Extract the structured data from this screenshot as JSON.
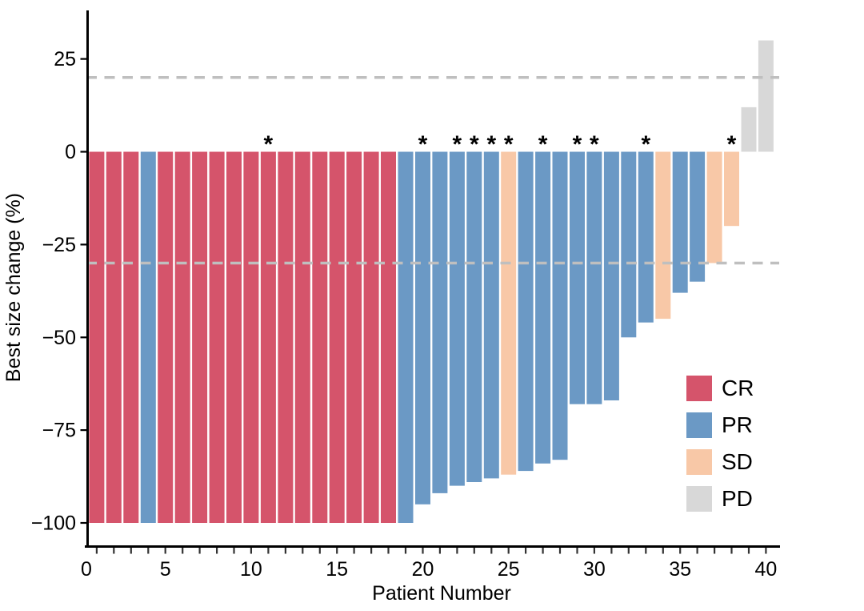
{
  "chart_data": {
    "type": "bar",
    "variant": "waterfall",
    "title": "",
    "xlabel": "Patient Number",
    "ylabel": "Best size change (%)",
    "xlim": [
      0,
      41
    ],
    "ylim": [
      -105,
      33
    ],
    "grid": false,
    "x_tick_labels": [
      {
        "value": 0,
        "label": "0"
      },
      {
        "value": 5,
        "label": "5"
      },
      {
        "value": 10,
        "label": "10"
      },
      {
        "value": 15,
        "label": "15"
      },
      {
        "value": 20,
        "label": "20"
      },
      {
        "value": 25,
        "label": "25"
      },
      {
        "value": 30,
        "label": "30"
      },
      {
        "value": 35,
        "label": "35"
      },
      {
        "value": 40,
        "label": "40"
      }
    ],
    "x_minor_ticks": {
      "from": 1,
      "to": 40,
      "step": 1
    },
    "y_ticks": [
      {
        "value": 25,
        "label": "25"
      },
      {
        "value": 0,
        "label": "0"
      },
      {
        "value": -25,
        "label": "−25"
      },
      {
        "value": -50,
        "label": "−50"
      },
      {
        "value": -75,
        "label": "−75"
      },
      {
        "value": -100,
        "label": "−100"
      }
    ],
    "reference_lines": {
      "values": [
        20,
        -30
      ],
      "style": "dashed",
      "color": "#bfbfbf"
    },
    "star_symbol": "*",
    "legend": {
      "position": "inside-right",
      "entries": [
        {
          "label": "CR",
          "color": "#d5546b"
        },
        {
          "label": "PR",
          "color": "#6b99c5"
        },
        {
          "label": "SD",
          "color": "#f8c8a7"
        },
        {
          "label": "PD",
          "color": "#d8d8d8"
        }
      ]
    },
    "patients": [
      {
        "n": 1,
        "best_size_change_pct": -100,
        "response": "CR",
        "starred": false
      },
      {
        "n": 2,
        "best_size_change_pct": -100,
        "response": "CR",
        "starred": false
      },
      {
        "n": 3,
        "best_size_change_pct": -100,
        "response": "CR",
        "starred": false
      },
      {
        "n": 4,
        "best_size_change_pct": -100,
        "response": "PR",
        "starred": false
      },
      {
        "n": 5,
        "best_size_change_pct": -100,
        "response": "CR",
        "starred": false
      },
      {
        "n": 6,
        "best_size_change_pct": -100,
        "response": "CR",
        "starred": false
      },
      {
        "n": 7,
        "best_size_change_pct": -100,
        "response": "CR",
        "starred": false
      },
      {
        "n": 8,
        "best_size_change_pct": -100,
        "response": "CR",
        "starred": false
      },
      {
        "n": 9,
        "best_size_change_pct": -100,
        "response": "CR",
        "starred": false
      },
      {
        "n": 10,
        "best_size_change_pct": -100,
        "response": "CR",
        "starred": false
      },
      {
        "n": 11,
        "best_size_change_pct": -100,
        "response": "CR",
        "starred": true
      },
      {
        "n": 12,
        "best_size_change_pct": -100,
        "response": "CR",
        "starred": false
      },
      {
        "n": 13,
        "best_size_change_pct": -100,
        "response": "CR",
        "starred": false
      },
      {
        "n": 14,
        "best_size_change_pct": -100,
        "response": "CR",
        "starred": false
      },
      {
        "n": 15,
        "best_size_change_pct": -100,
        "response": "CR",
        "starred": false
      },
      {
        "n": 16,
        "best_size_change_pct": -100,
        "response": "CR",
        "starred": false
      },
      {
        "n": 17,
        "best_size_change_pct": -100,
        "response": "CR",
        "starred": false
      },
      {
        "n": 18,
        "best_size_change_pct": -100,
        "response": "CR",
        "starred": false
      },
      {
        "n": 19,
        "best_size_change_pct": -100,
        "response": "PR",
        "starred": false
      },
      {
        "n": 20,
        "best_size_change_pct": -95,
        "response": "PR",
        "starred": true
      },
      {
        "n": 21,
        "best_size_change_pct": -92,
        "response": "PR",
        "starred": false
      },
      {
        "n": 22,
        "best_size_change_pct": -90,
        "response": "PR",
        "starred": true
      },
      {
        "n": 23,
        "best_size_change_pct": -89,
        "response": "PR",
        "starred": true
      },
      {
        "n": 24,
        "best_size_change_pct": -88,
        "response": "PR",
        "starred": true
      },
      {
        "n": 25,
        "best_size_change_pct": -87,
        "response": "SD",
        "starred": true
      },
      {
        "n": 26,
        "best_size_change_pct": -86,
        "response": "PR",
        "starred": false
      },
      {
        "n": 27,
        "best_size_change_pct": -84,
        "response": "PR",
        "starred": true
      },
      {
        "n": 28,
        "best_size_change_pct": -83,
        "response": "PR",
        "starred": false
      },
      {
        "n": 29,
        "best_size_change_pct": -68,
        "response": "PR",
        "starred": true
      },
      {
        "n": 30,
        "best_size_change_pct": -68,
        "response": "PR",
        "starred": true
      },
      {
        "n": 31,
        "best_size_change_pct": -67,
        "response": "PR",
        "starred": false
      },
      {
        "n": 32,
        "best_size_change_pct": -50,
        "response": "PR",
        "starred": false
      },
      {
        "n": 33,
        "best_size_change_pct": -46,
        "response": "PR",
        "starred": true
      },
      {
        "n": 34,
        "best_size_change_pct": -45,
        "response": "SD",
        "starred": false
      },
      {
        "n": 35,
        "best_size_change_pct": -38,
        "response": "PR",
        "starred": false
      },
      {
        "n": 36,
        "best_size_change_pct": -35,
        "response": "PR",
        "starred": false
      },
      {
        "n": 37,
        "best_size_change_pct": -30,
        "response": "SD",
        "starred": false
      },
      {
        "n": 38,
        "best_size_change_pct": -20,
        "response": "SD",
        "starred": true
      },
      {
        "n": 39,
        "best_size_change_pct": 12,
        "response": "PD",
        "starred": false
      },
      {
        "n": 40,
        "best_size_change_pct": 30,
        "response": "PD",
        "starred": false
      }
    ]
  },
  "style": {
    "axis_color": "#000000",
    "background": "#ffffff"
  }
}
